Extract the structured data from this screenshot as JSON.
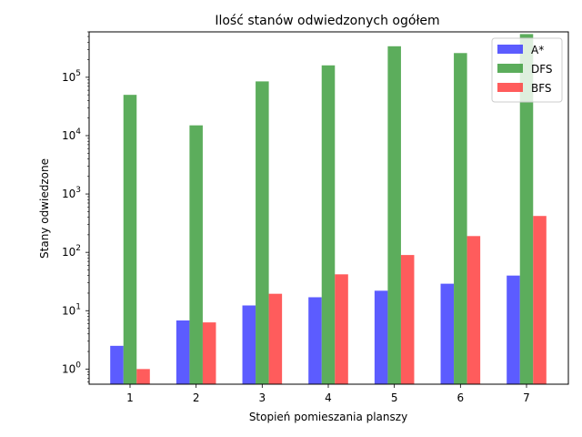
{
  "chart_data": {
    "type": "bar",
    "title": "Ilość stanów odwiedzonych ogółem",
    "xlabel": "Stopień pomieszania planszy",
    "ylabel": "Stany odwiedzone",
    "y_scale": "log",
    "ylim": [
      0.55,
      600000
    ],
    "categories": [
      "1",
      "2",
      "3",
      "4",
      "5",
      "6",
      "7"
    ],
    "y_ticks": [
      {
        "value": 1,
        "base": "10",
        "exp": "0"
      },
      {
        "value": 10,
        "base": "10",
        "exp": "1"
      },
      {
        "value": 100,
        "base": "10",
        "exp": "2"
      },
      {
        "value": 1000,
        "base": "10",
        "exp": "3"
      },
      {
        "value": 10000,
        "base": "10",
        "exp": "4"
      },
      {
        "value": 100000,
        "base": "10",
        "exp": "5"
      }
    ],
    "series": [
      {
        "name": "A*",
        "color": "#3333ff",
        "values": [
          2.5,
          6.8,
          12.3,
          17,
          22,
          29,
          40
        ]
      },
      {
        "name": "DFS",
        "color": "#339933",
        "values": [
          50000,
          15000,
          85000,
          160000,
          340000,
          260000,
          550000
        ]
      },
      {
        "name": "BFS",
        "color": "#ff3333",
        "values": [
          1,
          6.3,
          19.5,
          42,
          90,
          190,
          420
        ]
      }
    ],
    "legend_position": "top-right",
    "grid": false
  }
}
